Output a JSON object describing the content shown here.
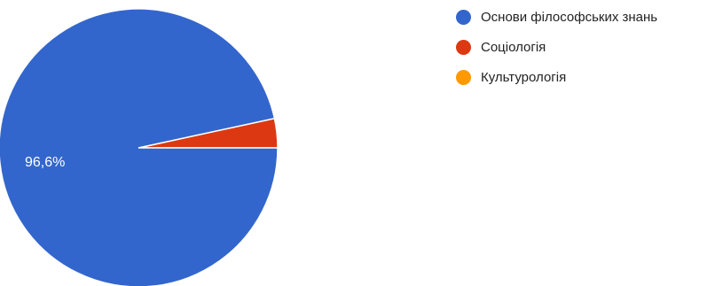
{
  "chart_data": {
    "type": "pie",
    "slices": [
      {
        "label": "Основи філософських знань",
        "value": 96.6,
        "value_label": "96,6%",
        "color": "#3366cc"
      },
      {
        "label": "Соціологія",
        "value": 3.4,
        "value_label": "",
        "color": "#dc3912"
      },
      {
        "label": "Культурологія",
        "value": 0,
        "value_label": "",
        "color": "#ff9900"
      }
    ],
    "legend_position": "top-right"
  }
}
